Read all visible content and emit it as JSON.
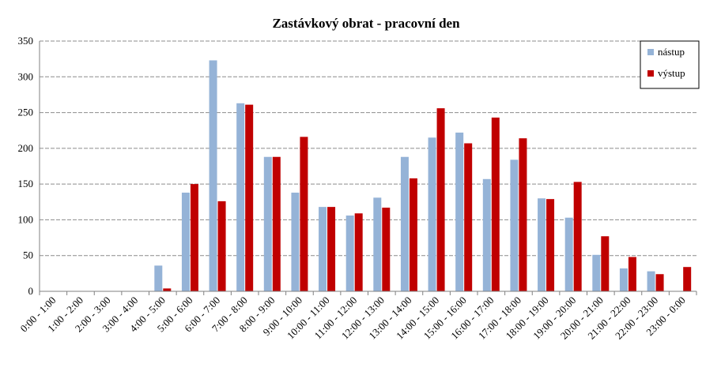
{
  "chart_data": {
    "type": "bar",
    "title": "Zastávkový obrat - pracovní den",
    "xlabel": "",
    "ylabel": "",
    "ylim": [
      0,
      350
    ],
    "yticks": [
      0,
      50,
      100,
      150,
      200,
      250,
      300,
      350
    ],
    "grid": true,
    "legend_position": "top-right",
    "categories": [
      "0:00 - 1:00",
      "1:00 - 2:00",
      "2:00 - 3:00",
      "3:00 - 4:00",
      "4:00 - 5:00",
      "5:00 - 6:00",
      "6:00 - 7:00",
      "7:00 - 8:00",
      "8:00 - 9:00",
      "9:00 - 10:00",
      "10:00 - 11:00",
      "11:00 - 12:00",
      "12:00 - 13:00",
      "13:00 - 14:00",
      "14:00 - 15:00",
      "15:00 - 16:00",
      "16:00 - 17:00",
      "17:00 - 18:00",
      "18:00 - 19:00",
      "19:00 - 20:00",
      "20:00 - 21:00",
      "21:00 - 22:00",
      "22:00 - 23:00",
      "23:00 - 0:00"
    ],
    "series": [
      {
        "name": "nástup",
        "color": "#95b3d7",
        "values": [
          0,
          0,
          0,
          0,
          36,
          138,
          323,
          263,
          188,
          138,
          118,
          106,
          131,
          188,
          215,
          222,
          157,
          184,
          130,
          103,
          51,
          32,
          28,
          0
        ]
      },
      {
        "name": "výstup",
        "color": "#c00000",
        "values": [
          0,
          0,
          0,
          0,
          4,
          150,
          126,
          261,
          188,
          216,
          118,
          109,
          117,
          158,
          256,
          207,
          243,
          214,
          129,
          153,
          77,
          48,
          24,
          34
        ]
      }
    ]
  }
}
